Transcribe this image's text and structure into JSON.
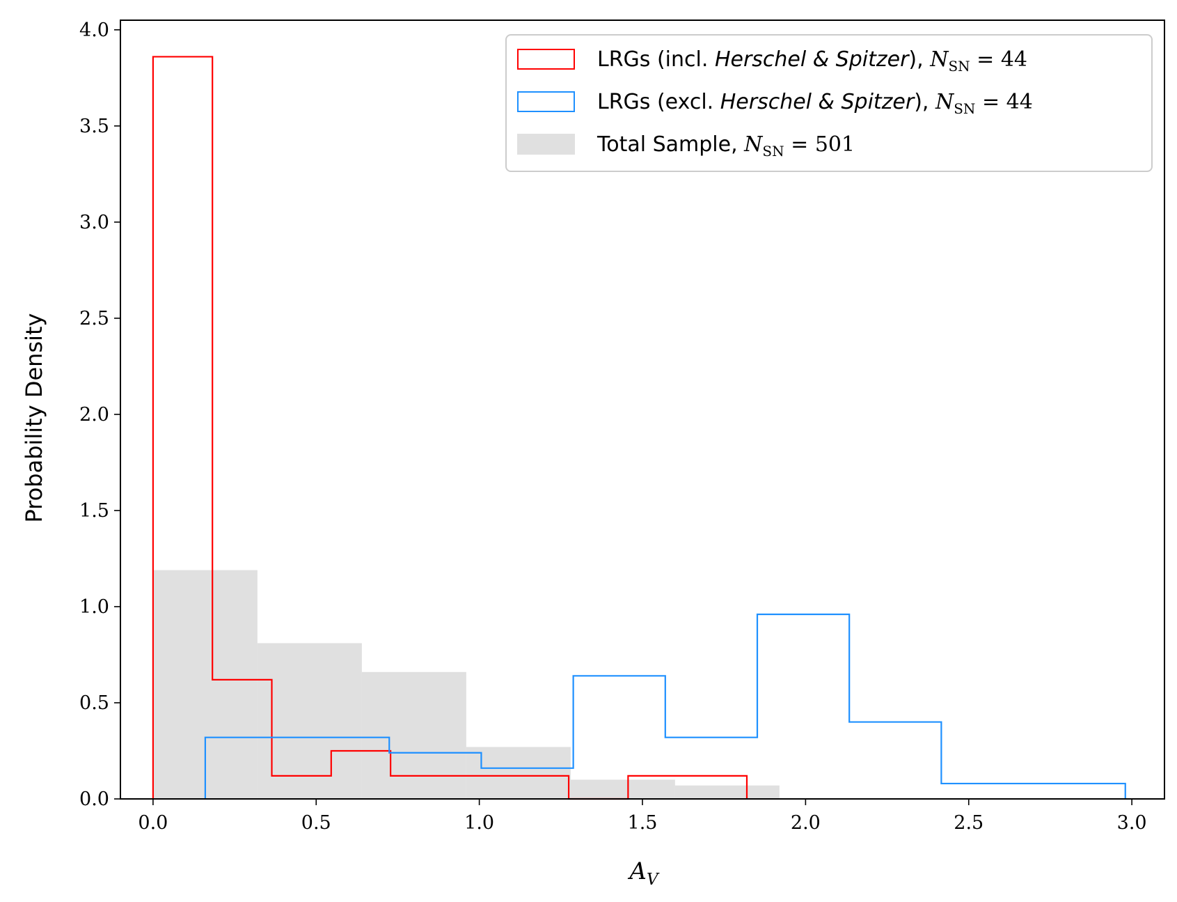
{
  "chart_data": {
    "type": "histogram",
    "xlabel": "A_V",
    "ylabel": "Probability Density",
    "xlim": [
      -0.1,
      3.1
    ],
    "ylim": [
      0.0,
      4.05
    ],
    "xticks": [
      0.0,
      0.5,
      1.0,
      1.5,
      2.0,
      2.5,
      3.0
    ],
    "xtick_labels": [
      "0.0",
      "0.5",
      "1.0",
      "1.5",
      "2.0",
      "2.5",
      "3.0"
    ],
    "yticks": [
      0.0,
      0.5,
      1.0,
      1.5,
      2.0,
      2.5,
      3.0,
      3.5,
      4.0
    ],
    "ytick_labels": [
      "0.0",
      "0.5",
      "1.0",
      "1.5",
      "2.0",
      "2.5",
      "3.0",
      "3.5",
      "4.0"
    ],
    "grid": false,
    "legend_position": "top-right",
    "series": [
      {
        "name": "Total Sample, N_SN = 501",
        "style": "filled",
        "color": "#e0e0e0",
        "bin_edges": [
          0.0,
          0.32,
          0.64,
          0.96,
          1.28,
          1.6,
          1.92
        ],
        "values": [
          1.19,
          0.81,
          0.66,
          0.27,
          0.1,
          0.07
        ]
      },
      {
        "name": "LRGs (incl. Herschel & Spitzer), N_SN = 44",
        "style": "step",
        "color": "#ff0000",
        "bin_edges": [
          0.0,
          0.182,
          0.364,
          0.546,
          0.728,
          0.91,
          1.092,
          1.274,
          1.456,
          1.638,
          1.82
        ],
        "values": [
          3.86,
          0.62,
          0.12,
          0.25,
          0.12,
          0.12,
          0.12,
          0.0,
          0.12,
          0.12
        ]
      },
      {
        "name": "LRGs (excl. Herschel & Spitzer), N_SN = 44",
        "style": "step",
        "color": "#1e90ff",
        "bin_edges": [
          0.16,
          0.442,
          0.724,
          1.006,
          1.288,
          1.57,
          1.852,
          2.134,
          2.416,
          2.698,
          2.98
        ],
        "values": [
          0.32,
          0.32,
          0.24,
          0.16,
          0.64,
          0.32,
          0.96,
          0.4,
          0.08,
          0.08
        ]
      }
    ],
    "legend": [
      {
        "prefix": "LRGs (incl. ",
        "italic": "Herschel & Spitzer",
        "suffix": "), ",
        "math": "N",
        "sub": "SN",
        "eq": " = 44"
      },
      {
        "prefix": "LRGs (excl. ",
        "italic": "Herschel & Spitzer",
        "suffix": "), ",
        "math": "N",
        "sub": "SN",
        "eq": " = 44"
      },
      {
        "prefix": "Total Sample, ",
        "italic": "",
        "suffix": "",
        "math": "N",
        "sub": "SN",
        "eq": " = 501"
      }
    ]
  }
}
